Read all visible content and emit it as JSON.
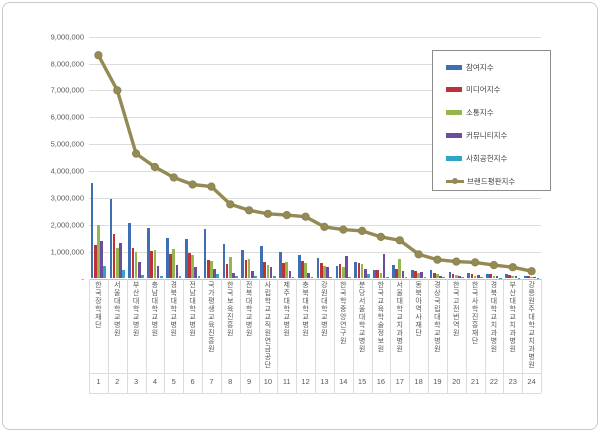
{
  "frame": {
    "background": "#FFFFFF",
    "border_color": "#C9C9C9"
  },
  "y_axis": {
    "tick_labels": [
      "9,000,000",
      "8,000,000",
      "7,000,000",
      "6,000,000",
      "5,000,000",
      "4,000,000",
      "3,000,000",
      "2,000,000",
      "1,000,000",
      "-"
    ],
    "tick_values": [
      9000000,
      8000000,
      7000000,
      6000000,
      5000000,
      4000000,
      3000000,
      2000000,
      1000000,
      0
    ]
  },
  "x_axis_numbers": [
    "1",
    "2",
    "3",
    "4",
    "5",
    "6",
    "7",
    "8",
    "9",
    "10",
    "11",
    "12",
    "13",
    "14",
    "15",
    "16",
    "17",
    "18",
    "19",
    "20",
    "21",
    "22",
    "23",
    "24"
  ],
  "chart_data": {
    "type": "bar+line",
    "title": "",
    "categories": [
      "한국장학재단",
      "서울대학교병원",
      "부산대학교병원",
      "충남대학교병원",
      "경북대학교병원",
      "전남대학교병원",
      "국가평생교육진흥원",
      "한국보육진흥원",
      "전북대학교병원",
      "사립학교교직원연금공단",
      "제주대학교병원",
      "충북대학교병원",
      "강원대학교병원",
      "한국학중앙연구원",
      "분당서울대학교병원",
      "한국교육학술정보원",
      "서울대학교치과병원",
      "동북아역사재단",
      "경상국립대학교병원",
      "한국고전번역원",
      "한국사학진흥재단",
      "경북대학교치과병원",
      "부산대학교치과병원",
      "강릉원주대학교치과병원"
    ],
    "ylim": [
      0,
      9000000
    ],
    "y_tick_step": 1000000,
    "grid": true,
    "legend_position": "top-right",
    "series": [
      {
        "name": "참여지수",
        "type": "bar",
        "color": "#3E6FB4",
        "values": [
          3570000,
          2950000,
          2080000,
          1870000,
          1520000,
          1460000,
          1860000,
          1270000,
          1050000,
          1210000,
          990000,
          870000,
          780000,
          470000,
          600000,
          310000,
          510000,
          300000,
          330000,
          250000,
          220000,
          180000,
          150000,
          100000
        ]
      },
      {
        "name": "미디어지수",
        "type": "bar",
        "color": "#BE3237",
        "values": [
          1250000,
          1650000,
          1120000,
          1030000,
          900000,
          960000,
          680000,
          530000,
          680000,
          620000,
          590000,
          660000,
          590000,
          550000,
          570000,
          330000,
          340000,
          280000,
          220000,
          180000,
          180000,
          150000,
          120000,
          80000
        ]
      },
      {
        "name": "소통지수",
        "type": "bar",
        "color": "#94B64C",
        "values": [
          2000000,
          1150000,
          980000,
          1050000,
          1090000,
          870000,
          660000,
          810000,
          720000,
          490000,
          620000,
          580000,
          470000,
          420000,
          550000,
          220000,
          720000,
          220000,
          150000,
          120000,
          100000,
          100000,
          80000,
          60000
        ]
      },
      {
        "name": "커뮤니티지수",
        "type": "bar",
        "color": "#6C4C9F",
        "values": [
          1400000,
          1320000,
          600000,
          470000,
          490000,
          420000,
          350000,
          220000,
          280000,
          420000,
          280000,
          220000,
          420000,
          840000,
          350000,
          920000,
          280000,
          260000,
          100000,
          100000,
          120000,
          80000,
          80000,
          50000
        ]
      },
      {
        "name": "사회공헌지수",
        "type": "bar",
        "color": "#2FA6C8",
        "values": [
          450000,
          310000,
          120000,
          100000,
          100000,
          100000,
          150000,
          80000,
          80000,
          80000,
          70000,
          60000,
          60000,
          50000,
          150000,
          50000,
          50000,
          50000,
          40000,
          40000,
          40000,
          30000,
          30000,
          20000
        ]
      },
      {
        "name": "브랜드평판지수",
        "type": "line",
        "color": "#948A54",
        "values": [
          8310000,
          7000000,
          4650000,
          4150000,
          3760000,
          3500000,
          3420000,
          2760000,
          2540000,
          2410000,
          2360000,
          2300000,
          1920000,
          1820000,
          1770000,
          1550000,
          1420000,
          900000,
          700000,
          630000,
          600000,
          500000,
          420000,
          270000
        ]
      }
    ]
  }
}
